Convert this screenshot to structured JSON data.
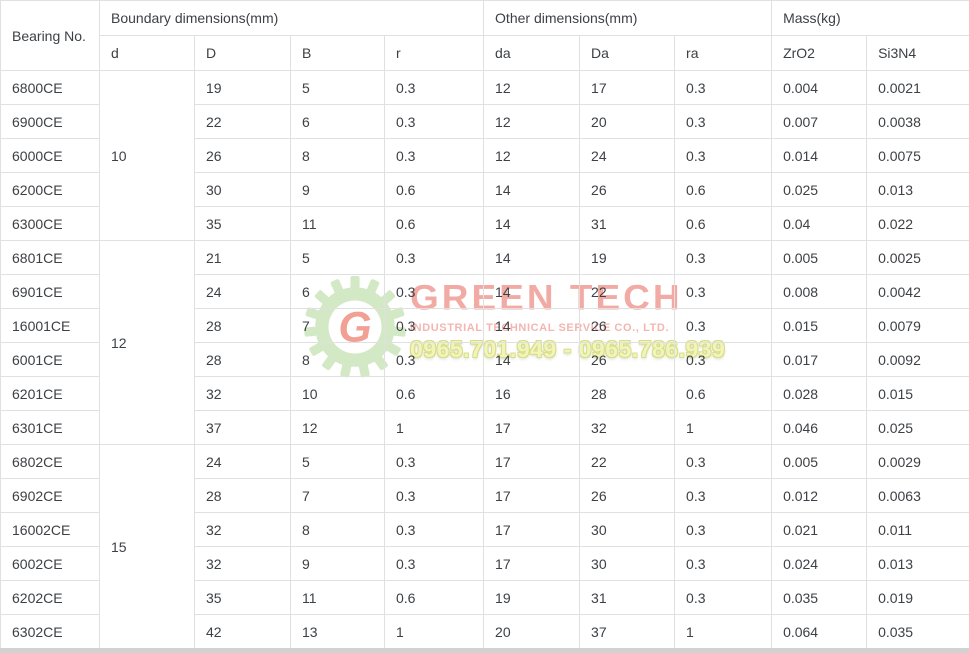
{
  "table": {
    "header": {
      "bearing_no": "Bearing No.",
      "groups": [
        {
          "label": "Boundary dimensions(mm)",
          "cols": [
            "d",
            "D",
            "B",
            "r"
          ]
        },
        {
          "label": "Other dimensions(mm)",
          "cols": [
            "da",
            "Da",
            "ra"
          ]
        },
        {
          "label": "Mass(kg)",
          "cols": [
            "ZrO2",
            "Si3N4"
          ]
        }
      ]
    },
    "d_groups": [
      {
        "d": "10",
        "rows": 5
      },
      {
        "d": "12",
        "rows": 6
      },
      {
        "d": "15",
        "rows": 6
      }
    ],
    "rows": [
      {
        "bearing": "6800CE",
        "D": "19",
        "B": "5",
        "r": "0.3",
        "da": "12",
        "Da": "17",
        "ra": "0.3",
        "zro2": "0.004",
        "si3n4": "0.0021"
      },
      {
        "bearing": "6900CE",
        "D": "22",
        "B": "6",
        "r": "0.3",
        "da": "12",
        "Da": "20",
        "ra": "0.3",
        "zro2": "0.007",
        "si3n4": "0.0038"
      },
      {
        "bearing": "6000CE",
        "D": "26",
        "B": "8",
        "r": "0.3",
        "da": "12",
        "Da": "24",
        "ra": "0.3",
        "zro2": "0.014",
        "si3n4": "0.0075"
      },
      {
        "bearing": "6200CE",
        "D": "30",
        "B": "9",
        "r": "0.6",
        "da": "14",
        "Da": "26",
        "ra": "0.6",
        "zro2": "0.025",
        "si3n4": "0.013"
      },
      {
        "bearing": "6300CE",
        "D": "35",
        "B": "11",
        "r": "0.6",
        "da": "14",
        "Da": "31",
        "ra": "0.6",
        "zro2": "0.04",
        "si3n4": "0.022"
      },
      {
        "bearing": "6801CE",
        "D": "21",
        "B": "5",
        "r": "0.3",
        "da": "14",
        "Da": "19",
        "ra": "0.3",
        "zro2": "0.005",
        "si3n4": "0.0025"
      },
      {
        "bearing": "6901CE",
        "D": "24",
        "B": "6",
        "r": "0.3",
        "da": "14",
        "Da": "22",
        "ra": "0.3",
        "zro2": "0.008",
        "si3n4": "0.0042"
      },
      {
        "bearing": "16001CE",
        "D": "28",
        "B": "7",
        "r": "0.3",
        "da": "14",
        "Da": "26",
        "ra": "0.3",
        "zro2": "0.015",
        "si3n4": "0.0079"
      },
      {
        "bearing": "6001CE",
        "D": "28",
        "B": "8",
        "r": "0.3",
        "da": "14",
        "Da": "26",
        "ra": "0.3",
        "zro2": "0.017",
        "si3n4": "0.0092"
      },
      {
        "bearing": "6201CE",
        "D": "32",
        "B": "10",
        "r": "0.6",
        "da": "16",
        "Da": "28",
        "ra": "0.6",
        "zro2": "0.028",
        "si3n4": "0.015"
      },
      {
        "bearing": "6301CE",
        "D": "37",
        "B": "12",
        "r": "1",
        "da": "17",
        "Da": "32",
        "ra": "1",
        "zro2": "0.046",
        "si3n4": "0.025"
      },
      {
        "bearing": "6802CE",
        "D": "24",
        "B": "5",
        "r": "0.3",
        "da": "17",
        "Da": "22",
        "ra": "0.3",
        "zro2": "0.005",
        "si3n4": "0.0029"
      },
      {
        "bearing": "6902CE",
        "D": "28",
        "B": "7",
        "r": "0.3",
        "da": "17",
        "Da": "26",
        "ra": "0.3",
        "zro2": "0.012",
        "si3n4": "0.0063"
      },
      {
        "bearing": "16002CE",
        "D": "32",
        "B": "8",
        "r": "0.3",
        "da": "17",
        "Da": "30",
        "ra": "0.3",
        "zro2": "0.021",
        "si3n4": "0.011"
      },
      {
        "bearing": "6002CE",
        "D": "32",
        "B": "9",
        "r": "0.3",
        "da": "17",
        "Da": "30",
        "ra": "0.3",
        "zro2": "0.024",
        "si3n4": "0.013"
      },
      {
        "bearing": "6202CE",
        "D": "35",
        "B": "11",
        "r": "0.6",
        "da": "19",
        "Da": "31",
        "ra": "0.3",
        "zro2": "0.035",
        "si3n4": "0.019"
      },
      {
        "bearing": "6302CE",
        "D": "42",
        "B": "13",
        "r": "1",
        "da": "20",
        "Da": "37",
        "ra": "1",
        "zro2": "0.064",
        "si3n4": "0.035"
      }
    ]
  },
  "watermark": {
    "brand": "GREEN TECH",
    "subtitle": "INDUSTRIAL TECHNICAL SERVICE CO., LTD.",
    "phone": "0965.701.949 - 0965.786.939",
    "logo_letter": "G",
    "colors": {
      "brand_red": "#e4584a",
      "gear_green": "#c9e3b6",
      "logo_salmon": "#f0897a",
      "phone_yellow": "#eff3a6"
    }
  }
}
